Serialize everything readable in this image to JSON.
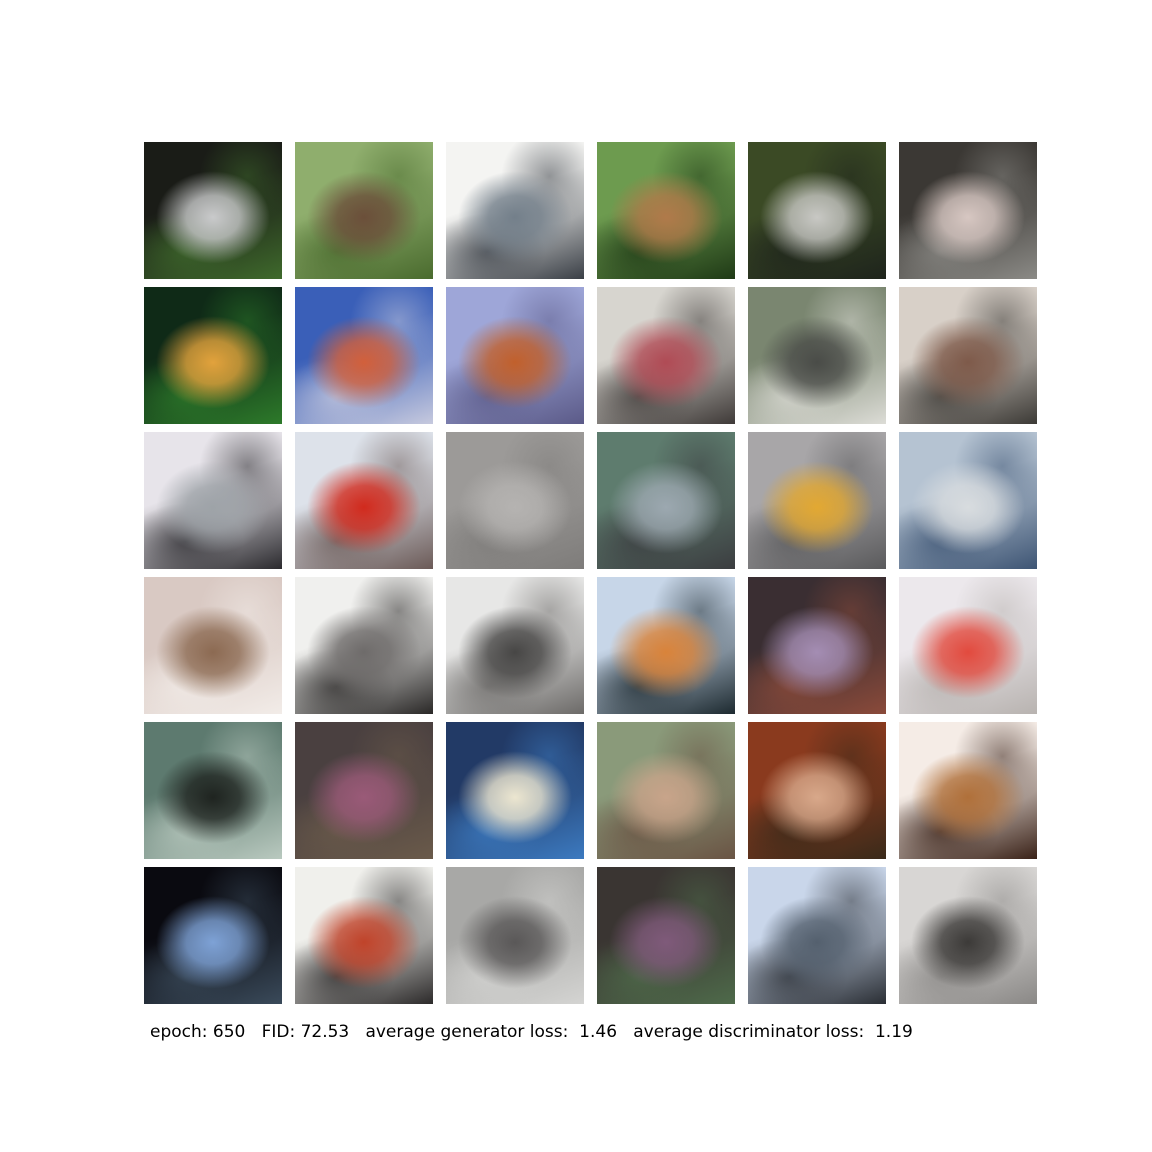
{
  "caption": {
    "text": "epoch: 650   FID: 72.53   average generator loss:  1.46   average discriminator loss:  1.19",
    "epoch": 650,
    "fid": 72.53,
    "average_generator_loss": 1.46,
    "average_discriminator_loss": 1.19
  },
  "grid": {
    "rows": 6,
    "cols": 6,
    "tiles": [
      [
        "#1a1c17",
        "#c9cacb",
        "#3f6a2c"
      ],
      [
        "#8fae6d",
        "#6b4f3a",
        "#4a6b2e"
      ],
      [
        "#f4f4f2",
        "#737f8a",
        "#3a3f46"
      ],
      [
        "#6d9b4f",
        "#b07a4a",
        "#1f3a16"
      ],
      [
        "#3b4a25",
        "#c8c8c4",
        "#1e241c"
      ],
      [
        "#3b3834",
        "#d7c7c2",
        "#8b8a86"
      ],
      [
        "#0f2a17",
        "#e2a23c",
        "#2d7a2a"
      ],
      [
        "#3a5fb8",
        "#d2603b",
        "#c6c9de"
      ],
      [
        "#9ea6d8",
        "#c1602c",
        "#5b5a88"
      ],
      [
        "#d7d5cf",
        "#b04b55",
        "#3f3a38"
      ],
      [
        "#7a8670",
        "#4a4c48",
        "#dcdcd6"
      ],
      [
        "#d8d0c8",
        "#7e5a4a",
        "#3c3a36"
      ],
      [
        "#e7e4ea",
        "#9ea3a8",
        "#2b2a2e"
      ],
      [
        "#dde2ea",
        "#d12a1d",
        "#6b5a57"
      ],
      [
        "#9c9a98",
        "#b5b3b1",
        "#7e7c7a"
      ],
      [
        "#5e7c6e",
        "#9ca8b0",
        "#3b3d40"
      ],
      [
        "#a8a6a8",
        "#e2a832",
        "#5a5a5c"
      ],
      [
        "#b5c3d2",
        "#d8dcdf",
        "#3e5574"
      ],
      [
        "#d9c9c3",
        "#8c6a52",
        "#f2ece8"
      ],
      [
        "#f0f0ee",
        "#6e6b6a",
        "#2a2827"
      ],
      [
        "#e7e7e6",
        "#474645",
        "#6c6a68"
      ],
      [
        "#c7d6e8",
        "#d9833a",
        "#1d2a30"
      ],
      [
        "#3a2e32",
        "#a48db3",
        "#8a4a3a"
      ],
      [
        "#ece8ec",
        "#e24a3e",
        "#b8b3b0"
      ],
      [
        "#5d7a6f",
        "#1f2420",
        "#b9c9bf"
      ],
      [
        "#4a4040",
        "#9a5a78",
        "#6a5a4a"
      ],
      [
        "#223a66",
        "#ece6d0",
        "#3c7ac0"
      ],
      [
        "#8a9a7a",
        "#c8a48a",
        "#6a5444"
      ],
      [
        "#8a3a1e",
        "#d8a88a",
        "#3a2a1a"
      ],
      [
        "#f5ece6",
        "#b0703a",
        "#3a2218"
      ],
      [
        "#0a0a10",
        "#7ea2d6",
        "#3a4a5a"
      ],
      [
        "#f0f0ec",
        "#c0432a",
        "#2c2a2a"
      ],
      [
        "#a8a8a6",
        "#5a5858",
        "#d4d4d2"
      ],
      [
        "#3a3532",
        "#7f5a7a",
        "#4e6a4a"
      ],
      [
        "#c9d6ea",
        "#54606e",
        "#2a2e34"
      ],
      [
        "#d8d6d4",
        "#3c3a38",
        "#8a8886"
      ]
    ]
  }
}
